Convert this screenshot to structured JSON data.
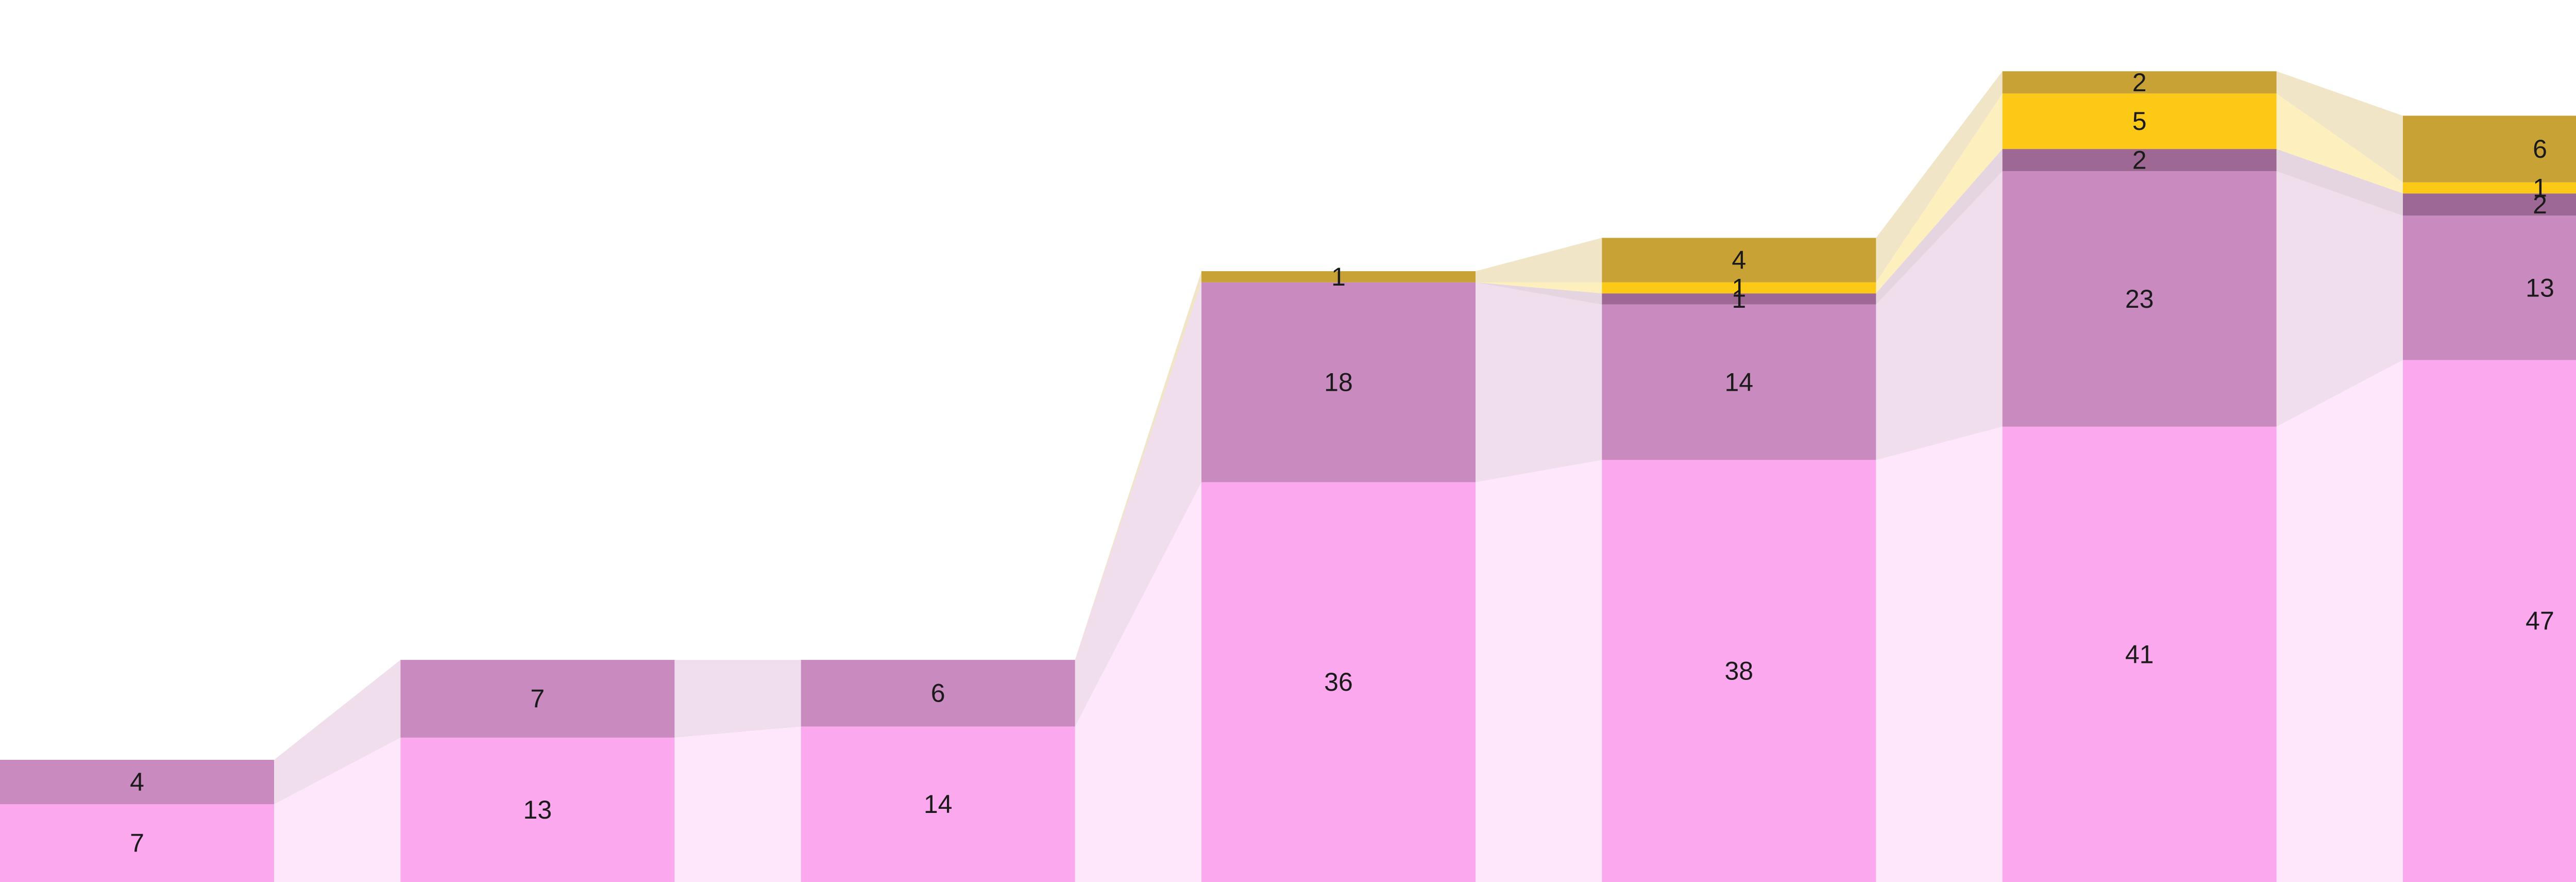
{
  "chart_data": {
    "type": "bar",
    "stacked": true,
    "connectors": true,
    "title": "",
    "xlabel": "",
    "ylabel": "",
    "legend": "none",
    "grid": false,
    "ylim": [
      0,
      79
    ],
    "category_count": 7,
    "series": [
      {
        "name": "",
        "color": "#fba8ef",
        "values": [
          7,
          13,
          14,
          36,
          38,
          41,
          47
        ]
      },
      {
        "name": "",
        "color": "#c98ac0",
        "values": [
          4,
          7,
          6,
          18,
          14,
          23,
          13
        ]
      },
      {
        "name": "",
        "color": "#9e6894",
        "values": [
          0,
          0,
          0,
          0,
          1,
          2,
          2
        ]
      },
      {
        "name": "",
        "color": "#fcc917",
        "values": [
          0,
          0,
          0,
          0,
          1,
          5,
          1
        ]
      },
      {
        "name": "",
        "color": "#c9a236",
        "values": [
          0,
          0,
          0,
          1,
          4,
          2,
          6
        ]
      }
    ]
  }
}
